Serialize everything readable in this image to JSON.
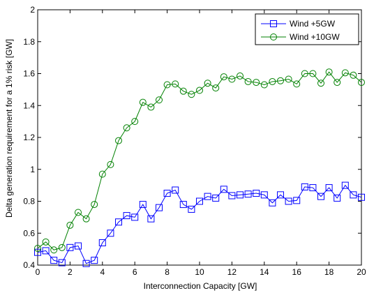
{
  "chart_data": {
    "type": "line",
    "xlabel": "Interconnection Capacity [GW]",
    "ylabel": "Delta generation requirement for a 1% risk [GW]",
    "xlim": [
      0,
      20
    ],
    "ylim": [
      0.4,
      2
    ],
    "xticks": [
      0,
      2,
      4,
      6,
      8,
      10,
      12,
      14,
      16,
      18,
      20
    ],
    "yticks": [
      0.4,
      0.6,
      0.8,
      1,
      1.2,
      1.4,
      1.6,
      1.8,
      2
    ],
    "grid": false,
    "legend_position": "top-right",
    "x": [
      0,
      0.5,
      1,
      1.5,
      2,
      2.5,
      3,
      3.5,
      4,
      4.5,
      5,
      5.5,
      6,
      6.5,
      7,
      7.5,
      8,
      8.5,
      9,
      9.5,
      10,
      10.5,
      11,
      11.5,
      12,
      12.5,
      13,
      13.5,
      14,
      14.5,
      15,
      15.5,
      16,
      16.5,
      17,
      17.5,
      18,
      18.5,
      19,
      19.5,
      20
    ],
    "series": [
      {
        "name": "Wind +5GW",
        "color": "#0000ff",
        "marker": "square",
        "values": [
          0.48,
          0.49,
          0.43,
          0.415,
          0.51,
          0.52,
          0.41,
          0.43,
          0.54,
          0.6,
          0.67,
          0.71,
          0.7,
          0.78,
          0.69,
          0.76,
          0.85,
          0.87,
          0.78,
          0.75,
          0.8,
          0.83,
          0.82,
          0.875,
          0.835,
          0.84,
          0.845,
          0.85,
          0.84,
          0.79,
          0.84,
          0.8,
          0.805,
          0.89,
          0.885,
          0.83,
          0.885,
          0.82,
          0.9,
          0.84,
          0.825
        ]
      },
      {
        "name": "Wind +10GW",
        "color": "#008000",
        "marker": "circle",
        "values": [
          0.505,
          0.545,
          0.495,
          0.51,
          0.65,
          0.73,
          0.69,
          0.78,
          0.97,
          1.03,
          1.18,
          1.26,
          1.3,
          1.42,
          1.39,
          1.435,
          1.53,
          1.535,
          1.49,
          1.47,
          1.495,
          1.54,
          1.51,
          1.58,
          1.565,
          1.585,
          1.55,
          1.545,
          1.53,
          1.55,
          1.555,
          1.565,
          1.535,
          1.6,
          1.6,
          1.54,
          1.61,
          1.545,
          1.605,
          1.59,
          1.545
        ]
      }
    ]
  }
}
